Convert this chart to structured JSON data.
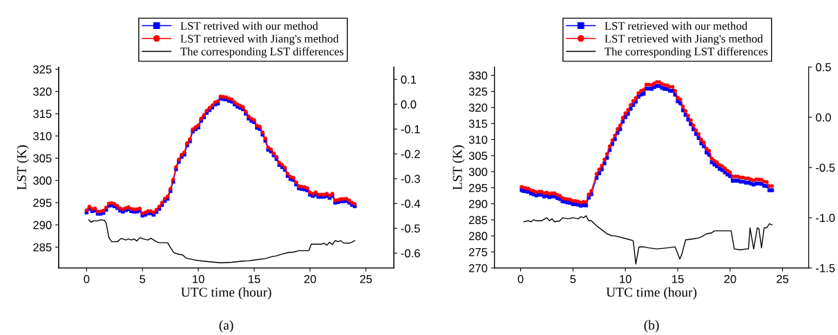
{
  "chart_data": [
    {
      "type": "line",
      "xlabel": "UTC time (hour)",
      "ylabel": "LST (K)",
      "annotations": [
        "(a)"
      ],
      "legend": "top",
      "grid": false,
      "xlim": [
        -2.5,
        27.5
      ],
      "xticks": [
        0,
        5,
        10,
        15,
        20,
        25
      ],
      "ylim": [
        280.3,
        325.5
      ],
      "yticks": [
        285,
        290,
        295,
        300,
        305,
        310,
        315,
        320,
        325
      ],
      "y2lim": [
        -0.66,
        0.15
      ],
      "y2ticks": [
        {
          "value": 0.1,
          "label": "0.1"
        },
        {
          "value": 0,
          "label": "0.0"
        },
        {
          "value": -0.1,
          "label": "-0.1"
        },
        {
          "value": -0.2,
          "label": "-0.2"
        },
        {
          "value": -0.3,
          "label": "-0.3"
        },
        {
          "value": -0.4,
          "label": "-0.4"
        },
        {
          "value": -0.5,
          "label": "-0.5"
        },
        {
          "value": -0.6,
          "label": "-0.6"
        }
      ],
      "series": [
        {
          "name": "LST retrived with our method",
          "color": "#0000ff",
          "marker": "square",
          "x": [
            0,
            0.25,
            0.5,
            0.75,
            1,
            1.25,
            1.5,
            1.75,
            2,
            2.25,
            2.5,
            2.75,
            3,
            3.25,
            3.5,
            3.75,
            4,
            4.25,
            4.5,
            4.75,
            5,
            5.25,
            5.5,
            5.75,
            6,
            6.25,
            6.5,
            6.75,
            7,
            7.25,
            7.5,
            7.75,
            8,
            8.25,
            8.5,
            8.75,
            9,
            9.25,
            9.5,
            9.75,
            10,
            10.25,
            10.5,
            10.75,
            11,
            11.25,
            11.5,
            11.75,
            12,
            12.25,
            12.5,
            12.75,
            13,
            13.25,
            13.5,
            13.75,
            14,
            14.25,
            14.5,
            14.75,
            15,
            15.25,
            15.5,
            15.75,
            16,
            16.25,
            16.5,
            16.75,
            17,
            17.25,
            17.5,
            17.75,
            18,
            18.25,
            18.5,
            18.75,
            19,
            19.25,
            19.5,
            19.75,
            20,
            20.25,
            20.5,
            20.75,
            21,
            21.25,
            21.5,
            21.75,
            22,
            22.25,
            22.5,
            22.75,
            23,
            23.25,
            23.5,
            23.75,
            24
          ],
          "values": [
            292.8,
            293.6,
            293.1,
            293.2,
            292.5,
            292.5,
            292.7,
            293.4,
            294.3,
            294.4,
            294.2,
            293.8,
            293.2,
            293.0,
            293.3,
            293.5,
            293.1,
            293.0,
            293.0,
            293.2,
            292.1,
            292.3,
            292.6,
            292.6,
            292.3,
            292.9,
            293.6,
            294.5,
            295.4,
            295.9,
            297.6,
            299.7,
            302.5,
            304.2,
            305.3,
            305.8,
            307.9,
            308.8,
            311.0,
            311.5,
            311.9,
            313.4,
            314.2,
            315.2,
            315.8,
            316.4,
            317.1,
            317.3,
            318.4,
            318.3,
            318.2,
            317.9,
            317.7,
            317.1,
            316.6,
            316.3,
            316.0,
            315.0,
            313.9,
            313.4,
            313.1,
            311.8,
            311.6,
            310.3,
            308.9,
            306.9,
            306.5,
            305.6,
            304.8,
            303.5,
            303.0,
            302.4,
            301.0,
            300.3,
            300.1,
            299.1,
            298.2,
            298.1,
            298.0,
            297.8,
            296.8,
            296.5,
            296.8,
            296.3,
            296.3,
            296.3,
            296.5,
            296.1,
            296.5,
            295.0,
            295.1,
            295.3,
            295.3,
            295.4,
            295.0,
            294.5,
            294.2
          ]
        },
        {
          "name": "LST retrieved with Jiang's method",
          "color": "#ff0000",
          "marker": "circle",
          "x": [
            0,
            0.25,
            0.5,
            0.75,
            1,
            1.25,
            1.5,
            1.75,
            2,
            2.25,
            2.5,
            2.75,
            3,
            3.25,
            3.5,
            3.75,
            4,
            4.25,
            4.5,
            4.75,
            5,
            5.25,
            5.5,
            5.75,
            6,
            6.25,
            6.5,
            6.75,
            7,
            7.25,
            7.5,
            7.75,
            8,
            8.25,
            8.5,
            8.75,
            9,
            9.25,
            9.5,
            9.75,
            10,
            10.25,
            10.5,
            10.75,
            11,
            11.25,
            11.5,
            11.75,
            12,
            12.25,
            12.5,
            12.75,
            13,
            13.25,
            13.5,
            13.75,
            14,
            14.25,
            14.5,
            14.75,
            15,
            15.25,
            15.5,
            15.75,
            16,
            16.25,
            16.5,
            16.75,
            17,
            17.25,
            17.5,
            17.75,
            18,
            18.25,
            18.5,
            18.75,
            19,
            19.25,
            19.5,
            19.75,
            20,
            20.25,
            20.5,
            20.75,
            21,
            21.25,
            21.5,
            21.75,
            22,
            22.25,
            22.5,
            22.75,
            23,
            23.25,
            23.5,
            23.75,
            24
          ],
          "values": [
            293.3,
            294.1,
            293.6,
            293.7,
            293.0,
            293.0,
            293.2,
            293.9,
            294.8,
            294.9,
            294.7,
            294.3,
            293.7,
            293.5,
            293.8,
            294.0,
            293.6,
            293.5,
            293.5,
            293.7,
            292.6,
            292.8,
            293.1,
            293.1,
            292.8,
            293.4,
            294.1,
            295.0,
            295.9,
            296.4,
            298.1,
            300.2,
            303.0,
            304.7,
            305.8,
            306.3,
            308.4,
            309.3,
            311.5,
            312.0,
            312.4,
            313.9,
            314.7,
            315.7,
            316.3,
            316.9,
            317.6,
            317.8,
            318.9,
            318.8,
            318.7,
            318.4,
            318.2,
            317.6,
            317.1,
            316.8,
            316.5,
            315.5,
            314.4,
            313.9,
            313.6,
            312.3,
            312.1,
            310.8,
            309.4,
            307.4,
            307.0,
            306.1,
            305.3,
            304.0,
            303.5,
            302.9,
            301.5,
            300.8,
            300.6,
            299.6,
            298.7,
            298.6,
            298.5,
            298.3,
            297.3,
            297.0,
            297.3,
            296.8,
            296.8,
            296.8,
            297.0,
            296.6,
            297.0,
            295.5,
            295.6,
            295.8,
            295.8,
            295.9,
            295.5,
            295.0,
            294.7
          ]
        },
        {
          "name": "The corresponding LST differences",
          "color": "#000000",
          "axis": "y2",
          "marker": "none",
          "line_style": "solid",
          "x": [
            0.2,
            0.4,
            0.6,
            1.0,
            1.25,
            1.6,
            1.75,
            2.0,
            2.25,
            2.75,
            3.1,
            3.5,
            3.75,
            4.0,
            4.25,
            4.5,
            4.75,
            5.25,
            5.5,
            5.75,
            6.0,
            6.25,
            6.5,
            7.25,
            7.5,
            7.8,
            8.0,
            8.25,
            8.6,
            8.9,
            9.5,
            10,
            11,
            12,
            13,
            14,
            14.5,
            15,
            16,
            16.5,
            17,
            17.5,
            18,
            18.5,
            19,
            19.9,
            20.1,
            21,
            21.25,
            21.5,
            21.75,
            22.0,
            22.25,
            22.5,
            22.75,
            23.0,
            23.5,
            23.75,
            24.0
          ],
          "values": [
            -0.466,
            -0.476,
            -0.47,
            -0.47,
            -0.466,
            -0.468,
            -0.479,
            -0.538,
            -0.554,
            -0.554,
            -0.541,
            -0.547,
            -0.543,
            -0.547,
            -0.543,
            -0.551,
            -0.538,
            -0.545,
            -0.547,
            -0.54,
            -0.547,
            -0.554,
            -0.558,
            -0.558,
            -0.577,
            -0.598,
            -0.601,
            -0.605,
            -0.607,
            -0.62,
            -0.626,
            -0.63,
            -0.635,
            -0.639,
            -0.637,
            -0.632,
            -0.631,
            -0.628,
            -0.622,
            -0.615,
            -0.611,
            -0.604,
            -0.598,
            -0.596,
            -0.59,
            -0.59,
            -0.564,
            -0.564,
            -0.56,
            -0.568,
            -0.556,
            -0.566,
            -0.549,
            -0.554,
            -0.55,
            -0.559,
            -0.56,
            -0.556,
            -0.549
          ]
        }
      ]
    },
    {
      "type": "line",
      "xlabel": "UTC time (hour)",
      "ylabel": "LST (K)",
      "annotations": [
        "(b)"
      ],
      "legend": "top",
      "grid": false,
      "xlim": [
        -2.5,
        27.5
      ],
      "xticks": [
        0,
        5,
        10,
        15,
        20,
        25
      ],
      "ylim": [
        270,
        332.6
      ],
      "yticks": [
        270,
        275,
        280,
        285,
        290,
        295,
        300,
        305,
        310,
        315,
        320,
        325,
        330
      ],
      "y2lim": [
        -1.5,
        0.5
      ],
      "y2ticks": [
        {
          "value": 0.5,
          "label": "0.5"
        },
        {
          "value": 0,
          "label": "0.0"
        },
        {
          "value": -0.5,
          "label": "-0.5"
        },
        {
          "value": -1,
          "label": "-1.0"
        },
        {
          "value": -1.5,
          "label": "-1.5"
        }
      ],
      "series": [
        {
          "name": "LST retrieved with our method",
          "color": "#0000ff",
          "marker": "square",
          "x": [
            0.1,
            0.25,
            0.5,
            0.75,
            1,
            1.25,
            1.5,
            1.75,
            2,
            2.25,
            2.5,
            2.75,
            3,
            3.25,
            3.5,
            3.75,
            4,
            4.25,
            4.5,
            4.75,
            5,
            5.25,
            5.5,
            5.75,
            6,
            6.25,
            6.5,
            6.75,
            7.25,
            7.5,
            7.75,
            8,
            8.25,
            8.5,
            8.75,
            9,
            9.25,
            9.5,
            9.75,
            10,
            10.25,
            10.5,
            10.75,
            11,
            11.25,
            11.5,
            11.75,
            12,
            12.25,
            12.5,
            12.75,
            13,
            13.25,
            13.5,
            13.75,
            14,
            14.25,
            14.5,
            14.75,
            15,
            15.25,
            15.5,
            15.75,
            16,
            16.25,
            16.5,
            16.75,
            17,
            17.25,
            17.5,
            17.75,
            18,
            18.25,
            18.5,
            18.75,
            19,
            19.25,
            19.5,
            19.75,
            20,
            20.25,
            20.5,
            20.75,
            21,
            21.25,
            21.5,
            21.75,
            22,
            22.25,
            22.5,
            22.75,
            23,
            23.25,
            23.5,
            23.75,
            24
          ],
          "values": [
            294.3,
            294.0,
            293.9,
            293.7,
            293.2,
            293.0,
            292.6,
            292.8,
            292.8,
            292.3,
            292.5,
            292.1,
            292.3,
            292.3,
            291.8,
            291.5,
            290.8,
            290.6,
            290.4,
            290.3,
            289.9,
            289.9,
            289.7,
            289.4,
            289.6,
            289.5,
            291.9,
            293.0,
            298.1,
            299.5,
            300.7,
            302.6,
            304.3,
            306.7,
            308.6,
            310.1,
            312.1,
            313.2,
            315.6,
            317.0,
            318.0,
            319.6,
            320.8,
            321.8,
            323.3,
            324.0,
            324.3,
            325.9,
            325.9,
            325.8,
            326.3,
            326.7,
            326.7,
            326.1,
            325.8,
            325.7,
            325.2,
            325.2,
            324.0,
            321.9,
            321.3,
            319.1,
            317.7,
            316.2,
            314.8,
            313.2,
            311.7,
            310.5,
            308.8,
            307.9,
            306.0,
            305.3,
            302.9,
            302.2,
            301.7,
            300.9,
            300.5,
            299.8,
            299.1,
            298.6,
            297.2,
            297.2,
            297.2,
            296.9,
            296.9,
            296.6,
            296.6,
            296.3,
            296.0,
            296.3,
            296.3,
            296.2,
            295.6,
            295.5,
            294.2,
            294.2
          ]
        },
        {
          "name": "LST retrieved with Jiang's method",
          "color": "#ff0000",
          "marker": "circle",
          "x": [
            0.1,
            0.25,
            0.5,
            0.75,
            1,
            1.25,
            1.5,
            1.75,
            2,
            2.25,
            2.5,
            2.75,
            3,
            3.25,
            3.5,
            3.75,
            4,
            4.25,
            4.5,
            4.75,
            5,
            5.25,
            5.5,
            5.75,
            6,
            6.25,
            6.5,
            6.75,
            7.25,
            7.5,
            7.75,
            8,
            8.25,
            8.5,
            8.75,
            9,
            9.25,
            9.5,
            9.75,
            10,
            10.25,
            10.5,
            10.75,
            11,
            11.25,
            11.5,
            11.75,
            12,
            12.25,
            12.5,
            12.75,
            13,
            13.25,
            13.5,
            13.75,
            14,
            14.25,
            14.5,
            14.75,
            15,
            15.25,
            15.5,
            15.75,
            16,
            16.25,
            16.5,
            16.75,
            17,
            17.25,
            17.5,
            17.75,
            18,
            18.25,
            18.5,
            18.75,
            19,
            19.25,
            19.5,
            19.75,
            20,
            20.25,
            20.5,
            20.75,
            21,
            21.25,
            21.5,
            21.75,
            22,
            22.25,
            22.5,
            22.75,
            23,
            23.25,
            23.5,
            23.75,
            24
          ],
          "values": [
            295.3,
            295.0,
            294.9,
            294.7,
            294.2,
            294.0,
            293.6,
            293.8,
            293.8,
            293.3,
            293.5,
            293.1,
            293.3,
            293.3,
            292.8,
            292.5,
            291.8,
            291.6,
            291.4,
            291.3,
            290.9,
            290.9,
            290.7,
            290.4,
            290.6,
            290.5,
            292.9,
            294.0,
            299.3,
            300.7,
            301.9,
            303.8,
            305.5,
            307.9,
            309.8,
            311.3,
            313.3,
            314.4,
            316.8,
            318.2,
            319.2,
            320.8,
            322.0,
            323.0,
            324.5,
            325.2,
            325.5,
            327.1,
            327.1,
            327.0,
            327.5,
            327.9,
            327.9,
            327.3,
            327.0,
            326.9,
            326.4,
            326.4,
            325.2,
            323.1,
            322.5,
            320.3,
            318.9,
            317.4,
            316.0,
            314.4,
            312.9,
            311.7,
            310.0,
            309.1,
            307.2,
            306.5,
            304.1,
            303.4,
            302.9,
            302.1,
            301.7,
            301.0,
            300.3,
            299.8,
            298.5,
            298.5,
            298.5,
            298.2,
            298.2,
            297.9,
            297.9,
            297.6,
            297.3,
            297.6,
            297.6,
            297.5,
            296.9,
            296.8,
            295.5,
            295.5
          ]
        },
        {
          "name": "The corresponding LST differences",
          "color": "#000000",
          "axis": "y2",
          "marker": "none",
          "line_style": "solid",
          "x": [
            0.3,
            0.75,
            1.0,
            1.25,
            1.5,
            2.0,
            2.5,
            2.75,
            3.0,
            3.25,
            3.75,
            4.0,
            4.5,
            5.0,
            5.5,
            5.75,
            6.0,
            6.25,
            6.5,
            6.75,
            7.25,
            7.75,
            8.25,
            8.75,
            9.0,
            10.5,
            10.75,
            11.0,
            11.3,
            11.75,
            12.25,
            13.0,
            14.0,
            14.75,
            15.2,
            15.4,
            15.75,
            16.5,
            17.0,
            17.25,
            17.75,
            18.25,
            18.5,
            19.0,
            19.5,
            20.1,
            20.4,
            21.0,
            21.5,
            21.75,
            21.9,
            22.25,
            22.6,
            22.75,
            23.0,
            23.25,
            23.5,
            23.75,
            24.0
          ],
          "values": [
            -1.04,
            -1.03,
            -1.04,
            -1.02,
            -1.03,
            -1.03,
            -1.0,
            -1.03,
            -1.01,
            -1.04,
            -1.03,
            -1.0,
            -1.01,
            -1.0,
            -1.01,
            -0.99,
            -1.0,
            -0.98,
            -1.03,
            -1.03,
            -1.08,
            -1.12,
            -1.16,
            -1.18,
            -1.18,
            -1.22,
            -1.23,
            -1.46,
            -1.29,
            -1.29,
            -1.3,
            -1.31,
            -1.3,
            -1.29,
            -1.41,
            -1.36,
            -1.22,
            -1.21,
            -1.2,
            -1.19,
            -1.16,
            -1.15,
            -1.13,
            -1.13,
            -1.13,
            -1.13,
            -1.31,
            -1.32,
            -1.31,
            -1.31,
            -1.1,
            -1.31,
            -1.1,
            -1.11,
            -1.3,
            -1.1,
            -1.1,
            -1.06,
            -1.07
          ]
        }
      ]
    }
  ]
}
